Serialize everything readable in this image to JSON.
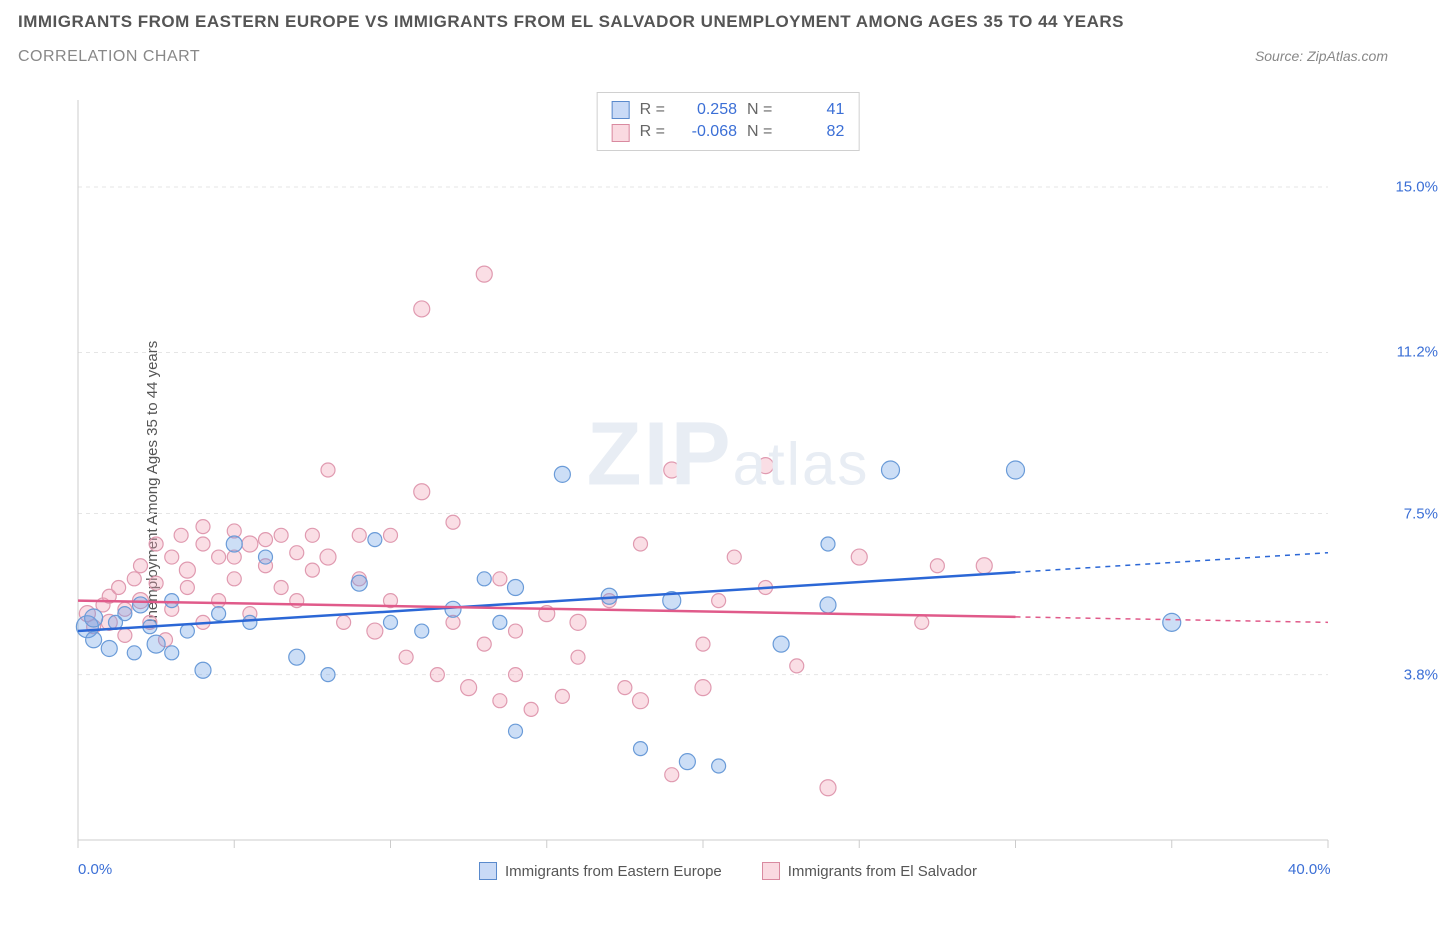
{
  "header": {
    "title": "IMMIGRANTS FROM EASTERN EUROPE VS IMMIGRANTS FROM EL SALVADOR UNEMPLOYMENT AMONG AGES 35 TO 44 YEARS",
    "subtitle": "CORRELATION CHART",
    "source": "Source: ZipAtlas.com"
  },
  "chart": {
    "type": "scatter",
    "ylabel": "Unemployment Among Ages 35 to 44 years",
    "xlim": [
      0,
      40
    ],
    "ylim": [
      0,
      17
    ],
    "xticks": [
      0,
      5,
      10,
      15,
      20,
      25,
      30,
      35,
      40
    ],
    "xtick_labels": {
      "0": "0.0%",
      "40": "40.0%"
    },
    "yticks": [
      3.8,
      7.5,
      11.2,
      15.0
    ],
    "ytick_labels": [
      "3.8%",
      "7.5%",
      "11.2%",
      "15.0%"
    ],
    "grid_color": "#e5e5e5",
    "axis_color": "#cccccc",
    "background_color": "#ffffff",
    "watermark": "ZIPatlas",
    "series": [
      {
        "name": "Immigrants from Eastern Europe",
        "color_fill": "rgba(110,160,230,0.35)",
        "color_stroke": "#6a9bd8",
        "trend_color": "#2b67d6",
        "R": "0.258",
        "N": "41",
        "trend": {
          "x1": 0,
          "y1": 4.8,
          "x2": 40,
          "y2": 6.6,
          "solid_until": 30
        },
        "points": [
          [
            0.3,
            4.9,
            11
          ],
          [
            0.5,
            5.1,
            9
          ],
          [
            0.5,
            4.6,
            8
          ],
          [
            1,
            4.4,
            8
          ],
          [
            1.2,
            5.0,
            7
          ],
          [
            1.5,
            5.2,
            7
          ],
          [
            1.8,
            4.3,
            7
          ],
          [
            2,
            5.4,
            8
          ],
          [
            2.3,
            4.9,
            7
          ],
          [
            2.5,
            4.5,
            9
          ],
          [
            3,
            5.5,
            7
          ],
          [
            3,
            4.3,
            7
          ],
          [
            3.5,
            4.8,
            7
          ],
          [
            4,
            3.9,
            8
          ],
          [
            4.5,
            5.2,
            7
          ],
          [
            5,
            6.8,
            8
          ],
          [
            5.5,
            5.0,
            7
          ],
          [
            6,
            6.5,
            7
          ],
          [
            7,
            4.2,
            8
          ],
          [
            8,
            3.8,
            7
          ],
          [
            9,
            5.9,
            8
          ],
          [
            9.5,
            6.9,
            7
          ],
          [
            10,
            5.0,
            7
          ],
          [
            11,
            4.8,
            7
          ],
          [
            12,
            5.3,
            8
          ],
          [
            13,
            6.0,
            7
          ],
          [
            13.5,
            5.0,
            7
          ],
          [
            14,
            5.8,
            8
          ],
          [
            15.5,
            8.4,
            8
          ],
          [
            17,
            5.6,
            8
          ],
          [
            19,
            5.5,
            9
          ],
          [
            18,
            2.1,
            7
          ],
          [
            19.5,
            1.8,
            8
          ],
          [
            20.5,
            1.7,
            7
          ],
          [
            22.5,
            4.5,
            8
          ],
          [
            24,
            5.4,
            8
          ],
          [
            24,
            6.8,
            7
          ],
          [
            26,
            8.5,
            9
          ],
          [
            30,
            8.5,
            9
          ],
          [
            35,
            5.0,
            9
          ],
          [
            14,
            2.5,
            7
          ]
        ]
      },
      {
        "name": "Immigrants from El Salvador",
        "color_fill": "rgba(240,160,180,0.35)",
        "color_stroke": "#e09ab0",
        "trend_color": "#e05a8a",
        "R": "-0.068",
        "N": "82",
        "trend": {
          "x1": 0,
          "y1": 5.5,
          "x2": 40,
          "y2": 5.0,
          "solid_until": 30
        },
        "points": [
          [
            0.3,
            5.2,
            8
          ],
          [
            0.5,
            4.9,
            7
          ],
          [
            0.8,
            5.4,
            7
          ],
          [
            1,
            5.0,
            8
          ],
          [
            1,
            5.6,
            7
          ],
          [
            1.3,
            5.8,
            7
          ],
          [
            1.5,
            4.7,
            7
          ],
          [
            1.5,
            5.3,
            7
          ],
          [
            1.8,
            6.0,
            7
          ],
          [
            2,
            5.5,
            8
          ],
          [
            2,
            6.3,
            7
          ],
          [
            2.3,
            5.0,
            7
          ],
          [
            2.5,
            5.9,
            7
          ],
          [
            2.5,
            6.8,
            7
          ],
          [
            2.8,
            4.6,
            7
          ],
          [
            3,
            5.3,
            7
          ],
          [
            3,
            6.5,
            7
          ],
          [
            3.3,
            7.0,
            7
          ],
          [
            3.5,
            5.8,
            7
          ],
          [
            3.5,
            6.2,
            8
          ],
          [
            4,
            5.0,
            7
          ],
          [
            4,
            6.8,
            7
          ],
          [
            4,
            7.2,
            7
          ],
          [
            4.5,
            5.5,
            7
          ],
          [
            4.5,
            6.5,
            7
          ],
          [
            5,
            6.0,
            7
          ],
          [
            5,
            6.5,
            7
          ],
          [
            5,
            7.1,
            7
          ],
          [
            5.5,
            5.2,
            7
          ],
          [
            5.5,
            6.8,
            8
          ],
          [
            6,
            6.3,
            7
          ],
          [
            6,
            6.9,
            7
          ],
          [
            6.5,
            5.8,
            7
          ],
          [
            6.5,
            7.0,
            7
          ],
          [
            7,
            5.5,
            7
          ],
          [
            7,
            6.6,
            7
          ],
          [
            7.5,
            6.2,
            7
          ],
          [
            7.5,
            7.0,
            7
          ],
          [
            8,
            6.5,
            8
          ],
          [
            8,
            8.5,
            7
          ],
          [
            8.5,
            5.0,
            7
          ],
          [
            9,
            6.0,
            7
          ],
          [
            9,
            7.0,
            7
          ],
          [
            9.5,
            4.8,
            8
          ],
          [
            10,
            5.5,
            7
          ],
          [
            10,
            7.0,
            7
          ],
          [
            10.5,
            4.2,
            7
          ],
          [
            11,
            8.0,
            8
          ],
          [
            11,
            12.2,
            8
          ],
          [
            11.5,
            3.8,
            7
          ],
          [
            12,
            5.0,
            7
          ],
          [
            12,
            7.3,
            7
          ],
          [
            12.5,
            3.5,
            8
          ],
          [
            13,
            4.5,
            7
          ],
          [
            13,
            13.0,
            8
          ],
          [
            13.5,
            3.2,
            7
          ],
          [
            13.5,
            6.0,
            7
          ],
          [
            14,
            3.8,
            7
          ],
          [
            14,
            4.8,
            7
          ],
          [
            14.5,
            3.0,
            7
          ],
          [
            15,
            5.2,
            8
          ],
          [
            15.5,
            3.3,
            7
          ],
          [
            16,
            5.0,
            8
          ],
          [
            16,
            4.2,
            7
          ],
          [
            17,
            5.5,
            7
          ],
          [
            17.5,
            3.5,
            7
          ],
          [
            18,
            6.8,
            7
          ],
          [
            18,
            3.2,
            8
          ],
          [
            19,
            8.5,
            8
          ],
          [
            19,
            1.5,
            7
          ],
          [
            20,
            3.5,
            8
          ],
          [
            20,
            4.5,
            7
          ],
          [
            20.5,
            5.5,
            7
          ],
          [
            21,
            6.5,
            7
          ],
          [
            22,
            8.6,
            8
          ],
          [
            22,
            5.8,
            7
          ],
          [
            23,
            4.0,
            7
          ],
          [
            24,
            1.2,
            8
          ],
          [
            25,
            6.5,
            8
          ],
          [
            27.5,
            6.3,
            7
          ],
          [
            29,
            6.3,
            8
          ],
          [
            27,
            5.0,
            7
          ]
        ]
      }
    ],
    "bottom_legend": [
      {
        "label": "Immigrants from Eastern Europe",
        "swatch": "blue"
      },
      {
        "label": "Immigrants from El Salvador",
        "swatch": "pink"
      }
    ]
  }
}
